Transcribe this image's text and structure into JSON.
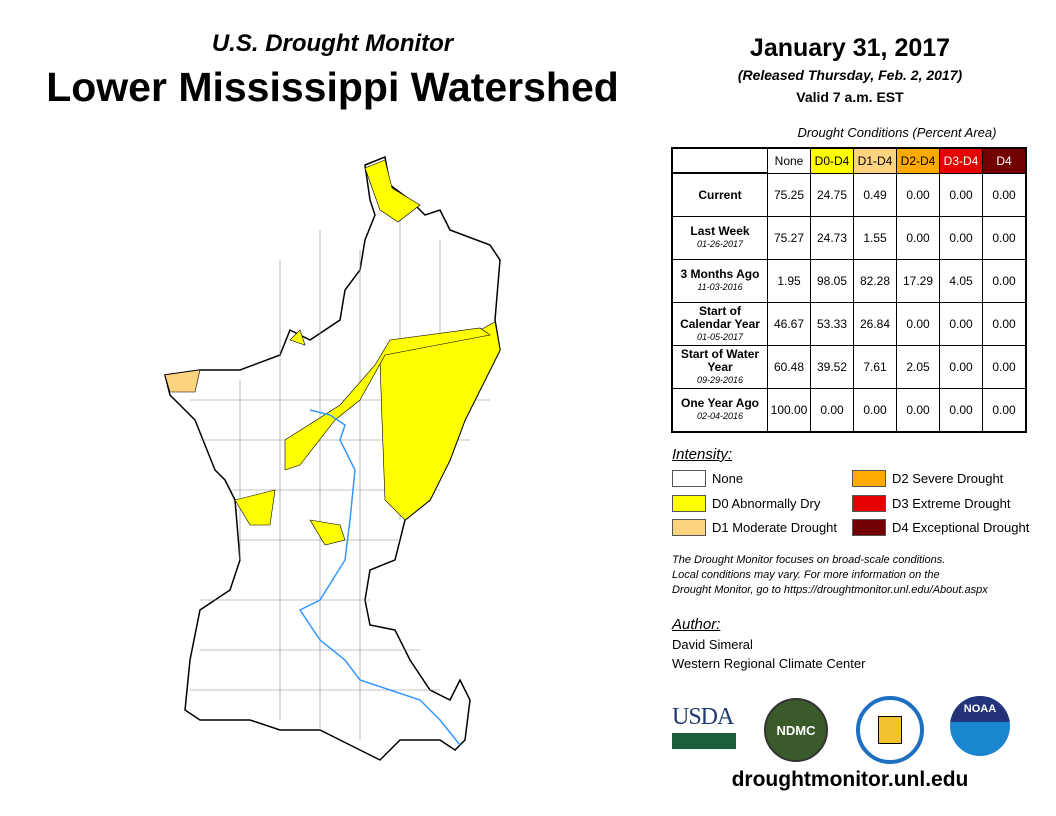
{
  "header": {
    "subtitle": "U.S. Drought Monitor",
    "title": "Lower Mississippi Watershed",
    "date": "January 31, 2017",
    "released": "(Released Thursday, Feb. 2, 2017)",
    "valid": "Valid 7 a.m. EST"
  },
  "table": {
    "caption": "Drought Conditions (Percent Area)",
    "columns": [
      "None",
      "D0-D4",
      "D1-D4",
      "D2-D4",
      "D3-D4",
      "D4"
    ],
    "column_colors": [
      "#ffffff",
      "#ffff00",
      "#fcd37f",
      "#ffaa00",
      "#e60000",
      "#730000"
    ],
    "rows": [
      {
        "label": "Current",
        "date": "",
        "values": [
          "75.25",
          "24.75",
          "0.49",
          "0.00",
          "0.00",
          "0.00"
        ]
      },
      {
        "label": "Last Week",
        "date": "01-26-2017",
        "values": [
          "75.27",
          "24.73",
          "1.55",
          "0.00",
          "0.00",
          "0.00"
        ]
      },
      {
        "label": "3 Months Ago",
        "date": "11-03-2016",
        "values": [
          "1.95",
          "98.05",
          "82.28",
          "17.29",
          "4.05",
          "0.00"
        ]
      },
      {
        "label": "Start of Calendar Year",
        "date": "01-05-2017",
        "values": [
          "46.67",
          "53.33",
          "26.84",
          "0.00",
          "0.00",
          "0.00"
        ]
      },
      {
        "label": "Start of Water Year",
        "date": "09-29-2016",
        "values": [
          "60.48",
          "39.52",
          "7.61",
          "2.05",
          "0.00",
          "0.00"
        ]
      },
      {
        "label": "One Year Ago",
        "date": "02-04-2016",
        "values": [
          "100.00",
          "0.00",
          "0.00",
          "0.00",
          "0.00",
          "0.00"
        ]
      }
    ]
  },
  "legend": {
    "title": "Intensity:",
    "items": [
      {
        "label": "None",
        "color": "#ffffff"
      },
      {
        "label": "D0 Abnormally Dry",
        "color": "#ffff00"
      },
      {
        "label": "D1 Moderate Drought",
        "color": "#fcd37f"
      },
      {
        "label": "D2 Severe Drought",
        "color": "#ffaa00"
      },
      {
        "label": "D3 Extreme Drought",
        "color": "#e60000"
      },
      {
        "label": "D4 Exceptional Drought",
        "color": "#730000"
      }
    ]
  },
  "note": [
    "The Drought Monitor focuses on broad-scale conditions.",
    "Local conditions may vary. For more information on the",
    "Drought Monitor, go to https://droughtmonitor.unl.edu/About.aspx"
  ],
  "author": {
    "label": "Author:",
    "name": "David Simeral",
    "org": "Western Regional Climate Center"
  },
  "logos": [
    "USDA",
    "NDMC",
    "NOAA"
  ],
  "url": "droughtmonitor.unl.edu"
}
